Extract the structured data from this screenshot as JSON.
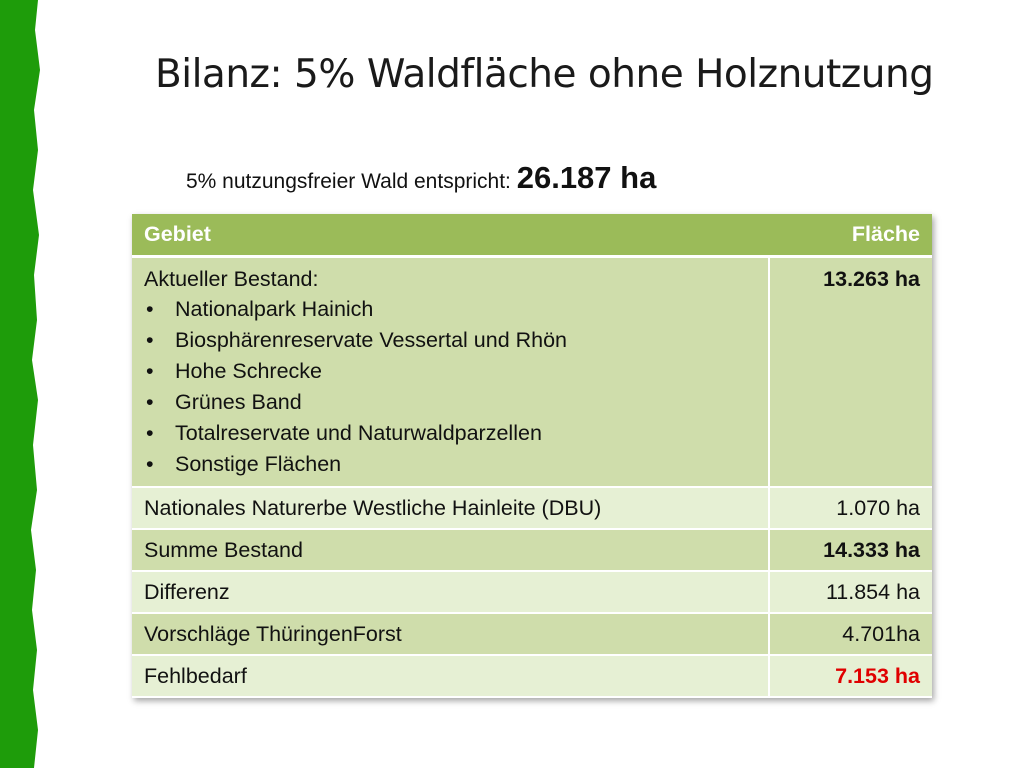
{
  "title": "Bilanz: 5% Waldfläche ohne Holznutzung",
  "subtitle": {
    "text": "5% nutzungsfreier Wald entspricht: ",
    "value": "26.187 ha"
  },
  "table": {
    "headers": [
      "Gebiet",
      "Fläche"
    ],
    "first_row": {
      "label": "Aktueller Bestand:",
      "items": [
        "Nationalpark Hainich",
        "Biosphärenreservate Vessertal und Rhön",
        "Hohe Schrecke",
        "Grünes Band",
        "Totalreservate und Naturwaldparzellen",
        "Sonstige Flächen"
      ],
      "value": "13.263 ha"
    },
    "rows": [
      {
        "label": "Nationales Naturerbe Westliche Hainleite (DBU)",
        "value": "1.070 ha"
      },
      {
        "label": "Summe Bestand",
        "value": "14.333 ha"
      },
      {
        "label": "Differenz",
        "value": "11.854 ha"
      },
      {
        "label": "Vorschläge ThüringenForst",
        "value": "4.701ha"
      },
      {
        "label": "Fehlbedarf",
        "value": "7.153 ha"
      }
    ]
  },
  "colors": {
    "accent_green": "#1e9c0a",
    "header_bg": "#9bbb59",
    "row_dark": "#cfddab",
    "row_light": "#e6f0d4",
    "deficit_red": "#e00000"
  }
}
